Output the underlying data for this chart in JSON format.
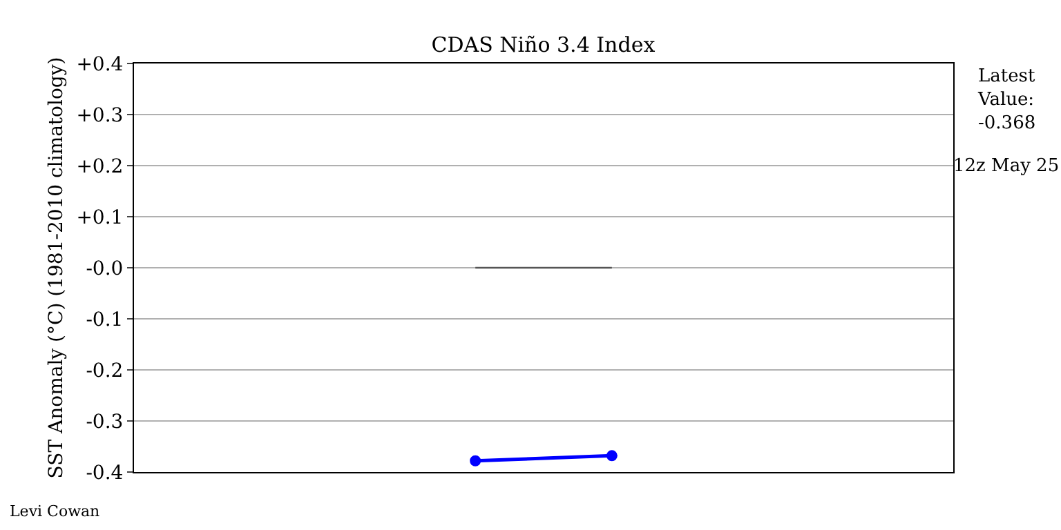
{
  "chart_data": {
    "type": "line",
    "title": "CDAS Niño 3.4 Index",
    "ylabel": "SST Anomaly (°C) (1981-2010 climatology)",
    "categories": [
      null,
      null,
      null,
      null,
      null,
      null
    ],
    "series": [
      {
        "color": "#555555",
        "values": [
          null,
          null,
          0,
          0,
          null,
          null
        ],
        "marker": "none"
      },
      {
        "color": "#0000ff",
        "values": [
          null,
          null,
          -0.378,
          -0.368,
          null,
          null
        ],
        "marker": "circle"
      }
    ],
    "ylim": [
      -0.4,
      0.4
    ],
    "yticks": [
      {
        "value": -0.4,
        "label": "-0.4"
      },
      {
        "value": -0.3,
        "label": "-0.3"
      },
      {
        "value": -0.2,
        "label": "-0.2"
      },
      {
        "value": -0.1,
        "label": "-0.1"
      },
      {
        "value": 0,
        "label": "-0.0"
      },
      {
        "value": 0.1,
        "label": "+0.1"
      },
      {
        "value": 0.2,
        "label": "+0.2"
      },
      {
        "value": 0.3,
        "label": "+0.3"
      },
      {
        "value": 0.4,
        "label": "+0.4"
      }
    ],
    "grid": "y",
    "tick_labels": "y",
    "annotations": [
      "Latest\nValue:\n-0.368",
      "12z May 25",
      "Levi Cowan"
    ]
  }
}
